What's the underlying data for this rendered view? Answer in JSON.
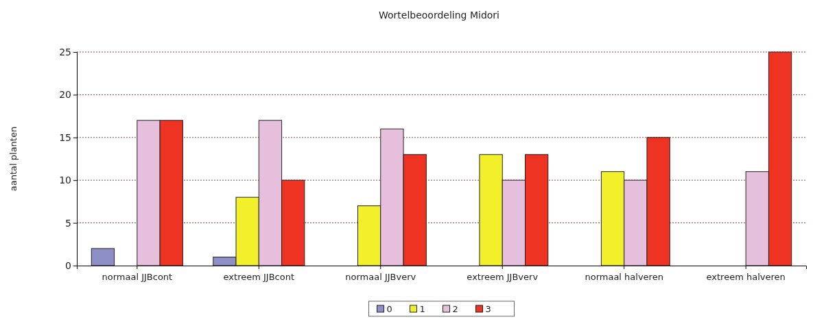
{
  "chart_data": {
    "type": "bar",
    "title": "Wortelbeoordeling Midori",
    "ylabel": "aantal planten",
    "categories": [
      "normaal JJBcont",
      "extreem JJBcont",
      "normaal JJBverv",
      "extreem JJBverv",
      "normaal halveren",
      "extreem halveren"
    ],
    "series": [
      {
        "name": "0",
        "color": "#8f8fc8",
        "values": [
          2,
          1,
          0,
          0,
          0,
          0
        ]
      },
      {
        "name": "1",
        "color": "#f2f02a",
        "values": [
          0,
          8,
          7,
          13,
          11,
          0
        ]
      },
      {
        "name": "2",
        "color": "#e6bfdc",
        "values": [
          17,
          17,
          16,
          10,
          10,
          11
        ]
      },
      {
        "name": "3",
        "color": "#ee3322",
        "values": [
          17,
          10,
          13,
          13,
          15,
          25
        ]
      }
    ],
    "ylim": [
      0,
      25
    ],
    "yticks": [
      0,
      5,
      10,
      15,
      20,
      25
    ],
    "grid": "y",
    "legend": "bottom"
  }
}
